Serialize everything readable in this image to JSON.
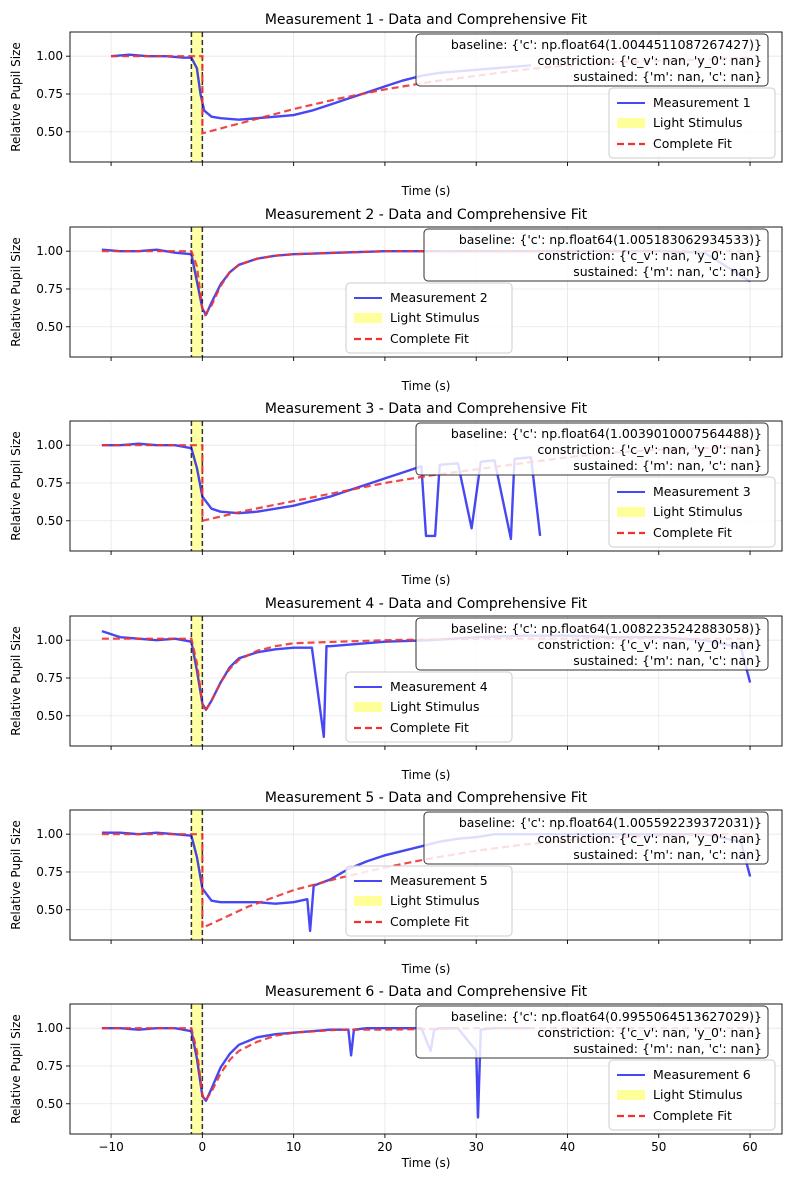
{
  "figure": {
    "shared_xlabel": "Time (s)"
  },
  "chart_data": [
    {
      "type": "line",
      "title": "Measurement 1 - Data and Comprehensive Fit",
      "xlabel": "Time (s)",
      "ylabel": "Relative Pupil Size",
      "xlim": [
        -14.5,
        63.5
      ],
      "ylim": [
        0.3,
        1.16
      ],
      "xticks": [
        -10,
        0,
        10,
        20,
        30,
        40,
        50,
        60
      ],
      "yticks": [
        0.5,
        0.75,
        1.0
      ],
      "ytick_labels": [
        "0.50",
        "0.75",
        "1.00"
      ],
      "show_xtick_labels": false,
      "grid": true,
      "legend_position": "lower-right",
      "stimulus": {
        "start": -1.2,
        "end": 0.0,
        "color": "#ffff99"
      },
      "fit_params": [
        "baseline: {'c': np.float64(1.0044511087267427)}",
        "constriction: {'c_v': nan, 'y_0': nan}",
        "sustained: {'m': nan, 'c': nan}"
      ],
      "series": [
        {
          "name": "Measurement 1",
          "kind": "data",
          "color": "#0000ee",
          "x": [
            -10,
            -8,
            -6,
            -4,
            -2,
            -1.2,
            -0.6,
            -0.2,
            0.2,
            1,
            2,
            4,
            6,
            8,
            10,
            12,
            14,
            16,
            18,
            20,
            22,
            24,
            26,
            28,
            30,
            32,
            34,
            36
          ],
          "y": [
            1.0,
            1.01,
            1.0,
            1.0,
            0.99,
            0.99,
            0.92,
            0.75,
            0.64,
            0.6,
            0.59,
            0.58,
            0.59,
            0.6,
            0.61,
            0.64,
            0.68,
            0.72,
            0.76,
            0.8,
            0.84,
            0.87,
            0.89,
            0.9,
            0.91,
            0.92,
            0.93,
            0.94
          ]
        },
        {
          "name": "Complete Fit",
          "kind": "fit",
          "color": "#ee3333",
          "x": [
            -10,
            -1.2,
            -1.2,
            0,
            0,
            5,
            10,
            15,
            20,
            25,
            30,
            35,
            40,
            45,
            50,
            55,
            60
          ],
          "y": [
            1.0,
            1.0,
            1.0,
            1.0,
            0.49,
            0.57,
            0.65,
            0.72,
            0.78,
            0.83,
            0.87,
            0.91,
            0.94,
            0.96,
            0.97,
            0.98,
            0.99
          ]
        }
      ],
      "legend": [
        "Measurement 1",
        "Light Stimulus",
        "Complete Fit"
      ]
    },
    {
      "type": "line",
      "title": "Measurement 2 - Data and Comprehensive Fit",
      "xlabel": "Time (s)",
      "ylabel": "Relative Pupil Size",
      "xlim": [
        -14.5,
        63.5
      ],
      "ylim": [
        0.3,
        1.16
      ],
      "xticks": [
        -10,
        0,
        10,
        20,
        30,
        40,
        50,
        60
      ],
      "yticks": [
        0.5,
        0.75,
        1.0
      ],
      "ytick_labels": [
        "0.50",
        "0.75",
        "1.00"
      ],
      "show_xtick_labels": false,
      "grid": true,
      "legend_position": "lower-center",
      "stimulus": {
        "start": -1.2,
        "end": 0.0,
        "color": "#ffff99"
      },
      "fit_params": [
        "baseline: {'c': np.float64(1.005183062934533)}",
        "constriction: {'c_v': nan, 'y_0': nan}",
        "sustained: {'m': nan, 'c': nan}"
      ],
      "series": [
        {
          "name": "Measurement 2",
          "kind": "data",
          "color": "#0000ee",
          "x": [
            -11,
            -9,
            -7,
            -5,
            -3,
            -1.2,
            -0.6,
            0,
            0.4,
            1,
            2,
            3,
            4,
            6,
            8,
            10,
            15,
            20,
            25,
            30,
            35,
            40,
            45,
            50,
            55,
            60
          ],
          "y": [
            1.01,
            1.0,
            1.0,
            1.01,
            0.99,
            0.98,
            0.8,
            0.62,
            0.58,
            0.66,
            0.78,
            0.86,
            0.91,
            0.95,
            0.97,
            0.98,
            0.99,
            1.0,
            1.0,
            1.0,
            1.0,
            1.0,
            1.0,
            1.0,
            0.99,
            0.8
          ]
        },
        {
          "name": "Complete Fit",
          "kind": "fit",
          "color": "#ee3333",
          "x": [
            -11,
            -1.2,
            -0.6,
            0,
            0.3,
            1,
            2,
            3,
            4,
            6,
            8,
            10,
            15,
            20,
            30,
            40,
            50,
            60
          ],
          "y": [
            1.0,
            1.0,
            0.9,
            0.62,
            0.58,
            0.64,
            0.77,
            0.86,
            0.91,
            0.95,
            0.97,
            0.98,
            0.99,
            1.0,
            1.0,
            1.0,
            1.0,
            1.0
          ]
        }
      ],
      "legend": [
        "Measurement 2",
        "Light Stimulus",
        "Complete Fit"
      ]
    },
    {
      "type": "line",
      "title": "Measurement 3 - Data and Comprehensive Fit",
      "xlabel": "Time (s)",
      "ylabel": "Relative Pupil Size",
      "xlim": [
        -14.5,
        63.5
      ],
      "ylim": [
        0.3,
        1.16
      ],
      "xticks": [
        -10,
        0,
        10,
        20,
        30,
        40,
        50,
        60
      ],
      "yticks": [
        0.5,
        0.75,
        1.0
      ],
      "ytick_labels": [
        "0.50",
        "0.75",
        "1.00"
      ],
      "show_xtick_labels": false,
      "grid": true,
      "legend_position": "lower-right",
      "stimulus": {
        "start": -1.2,
        "end": 0.0,
        "color": "#ffff99"
      },
      "fit_params": [
        "baseline: {'c': np.float64(1.0039010007564488)}",
        "constriction: {'c_v': nan, 'y_0': nan}",
        "sustained: {'m': nan, 'c': nan}"
      ],
      "series": [
        {
          "name": "Measurement 3",
          "kind": "data",
          "color": "#0000ee",
          "x": [
            -11,
            -9,
            -7,
            -5,
            -3,
            -1.2,
            -0.6,
            0,
            1,
            2,
            4,
            6,
            8,
            10,
            12,
            14,
            16,
            18,
            20,
            22,
            24,
            24.5,
            25.5,
            26,
            28,
            29.5,
            30.5,
            32,
            33.8,
            34.2,
            36,
            37
          ],
          "y": [
            1.0,
            1.0,
            1.01,
            1.0,
            1.0,
            0.98,
            0.85,
            0.66,
            0.58,
            0.56,
            0.55,
            0.56,
            0.58,
            0.6,
            0.63,
            0.66,
            0.7,
            0.74,
            0.78,
            0.82,
            0.86,
            0.4,
            0.4,
            0.87,
            0.88,
            0.45,
            0.89,
            0.9,
            0.38,
            0.91,
            0.92,
            0.4
          ]
        },
        {
          "name": "Complete Fit",
          "kind": "fit",
          "color": "#ee3333",
          "x": [
            -11,
            -1.2,
            -1.2,
            0,
            0,
            5,
            10,
            15,
            20,
            25,
            30,
            35,
            40,
            45,
            50,
            55,
            60
          ],
          "y": [
            1.0,
            1.0,
            1.0,
            1.0,
            0.5,
            0.57,
            0.63,
            0.69,
            0.75,
            0.8,
            0.84,
            0.88,
            0.92,
            0.95,
            0.97,
            0.98,
            0.99
          ]
        }
      ],
      "legend": [
        "Measurement 3",
        "Light Stimulus",
        "Complete Fit"
      ]
    },
    {
      "type": "line",
      "title": "Measurement 4 - Data and Comprehensive Fit",
      "xlabel": "Time (s)",
      "ylabel": "Relative Pupil Size",
      "xlim": [
        -14.5,
        63.5
      ],
      "ylim": [
        0.3,
        1.16
      ],
      "xticks": [
        -10,
        0,
        10,
        20,
        30,
        40,
        50,
        60
      ],
      "yticks": [
        0.5,
        0.75,
        1.0
      ],
      "ytick_labels": [
        "0.50",
        "0.75",
        "1.00"
      ],
      "show_xtick_labels": false,
      "grid": true,
      "legend_position": "lower-center",
      "stimulus": {
        "start": -1.2,
        "end": 0.0,
        "color": "#ffff99"
      },
      "fit_params": [
        "baseline: {'c': np.float64(1.0082235242883058)}",
        "constriction: {'c_v': nan, 'y_0': nan}",
        "sustained: {'m': nan, 'c': nan}"
      ],
      "series": [
        {
          "name": "Measurement 4",
          "kind": "data",
          "color": "#0000ee",
          "x": [
            -11,
            -9,
            -7,
            -5,
            -3,
            -1.2,
            -0.6,
            0,
            0.4,
            1,
            2,
            3,
            4,
            6,
            8,
            10,
            12,
            13.3,
            13.6,
            14,
            16,
            18,
            20,
            25,
            30,
            35,
            40,
            45,
            50,
            55,
            59,
            60
          ],
          "y": [
            1.06,
            1.02,
            1.01,
            1.0,
            1.01,
            0.99,
            0.8,
            0.58,
            0.54,
            0.6,
            0.72,
            0.82,
            0.88,
            0.92,
            0.94,
            0.95,
            0.95,
            0.36,
            0.96,
            0.96,
            0.97,
            0.98,
            0.99,
            1.0,
            1.02,
            1.03,
            1.03,
            1.02,
            1.02,
            1.0,
            0.95,
            0.72
          ]
        },
        {
          "name": "Complete Fit",
          "kind": "fit",
          "color": "#ee3333",
          "x": [
            -11,
            -1.2,
            -0.6,
            0,
            0.3,
            1,
            2,
            3,
            4,
            6,
            8,
            10,
            15,
            20,
            30,
            40,
            50,
            60
          ],
          "y": [
            1.01,
            1.01,
            0.85,
            0.58,
            0.53,
            0.6,
            0.72,
            0.81,
            0.87,
            0.93,
            0.96,
            0.98,
            0.99,
            1.0,
            1.01,
            1.01,
            1.01,
            1.01
          ]
        }
      ],
      "legend": [
        "Measurement 4",
        "Light Stimulus",
        "Complete Fit"
      ]
    },
    {
      "type": "line",
      "title": "Measurement 5 - Data and Comprehensive Fit",
      "xlabel": "Time (s)",
      "ylabel": "Relative Pupil Size",
      "xlim": [
        -14.5,
        63.5
      ],
      "ylim": [
        0.3,
        1.16
      ],
      "xticks": [
        -10,
        0,
        10,
        20,
        30,
        40,
        50,
        60
      ],
      "yticks": [
        0.5,
        0.75,
        1.0
      ],
      "ytick_labels": [
        "0.50",
        "0.75",
        "1.00"
      ],
      "show_xtick_labels": false,
      "grid": true,
      "legend_position": "lower-center",
      "stimulus": {
        "start": -1.2,
        "end": 0.0,
        "color": "#ffff99"
      },
      "fit_params": [
        "baseline: {'c': np.float64(1.005592239372031)}",
        "constriction: {'c_v': nan, 'y_0': nan}",
        "sustained: {'m': nan, 'c': nan}"
      ],
      "series": [
        {
          "name": "Measurement 5",
          "kind": "data",
          "color": "#0000ee",
          "x": [
            -11,
            -9,
            -7,
            -5,
            -3,
            -1.2,
            -0.6,
            0,
            1,
            2,
            4,
            6,
            8,
            10,
            11.5,
            11.8,
            12.2,
            14,
            16,
            18,
            20,
            22,
            24,
            26,
            28,
            30,
            32,
            34,
            36,
            40,
            45,
            50,
            55,
            59,
            60
          ],
          "y": [
            1.01,
            1.01,
            1.0,
            1.01,
            1.0,
            0.99,
            0.85,
            0.64,
            0.56,
            0.55,
            0.55,
            0.55,
            0.54,
            0.55,
            0.57,
            0.36,
            0.66,
            0.7,
            0.77,
            0.82,
            0.86,
            0.89,
            0.92,
            0.95,
            0.97,
            0.98,
            1.0,
            1.0,
            1.0,
            1.0,
            1.0,
            1.0,
            1.0,
            0.95,
            0.72
          ]
        },
        {
          "name": "Complete Fit",
          "kind": "fit",
          "color": "#ee3333",
          "x": [
            -11,
            -1.2,
            -1.2,
            0,
            0,
            5,
            10,
            15,
            20,
            25,
            30,
            35,
            40,
            45,
            50,
            55,
            60
          ],
          "y": [
            1.0,
            1.0,
            1.0,
            1.0,
            0.38,
            0.52,
            0.63,
            0.71,
            0.78,
            0.84,
            0.89,
            0.93,
            0.96,
            0.98,
            0.99,
            1.0,
            1.0
          ]
        }
      ],
      "legend": [
        "Measurement 5",
        "Light Stimulus",
        "Complete Fit"
      ]
    },
    {
      "type": "line",
      "title": "Measurement 6 - Data and Comprehensive Fit",
      "xlabel": "Time (s)",
      "ylabel": "Relative Pupil Size",
      "xlim": [
        -14.5,
        63.5
      ],
      "ylim": [
        0.3,
        1.16
      ],
      "xticks": [
        -10,
        0,
        10,
        20,
        30,
        40,
        50,
        60
      ],
      "xtick_labels": [
        "−10",
        "0",
        "10",
        "20",
        "30",
        "40",
        "50",
        "60"
      ],
      "yticks": [
        0.5,
        0.75,
        1.0
      ],
      "ytick_labels": [
        "0.50",
        "0.75",
        "1.00"
      ],
      "show_xtick_labels": true,
      "grid": true,
      "legend_position": "lower-right",
      "stimulus": {
        "start": -1.2,
        "end": 0.0,
        "color": "#ffff99"
      },
      "fit_params": [
        "baseline: {'c': np.float64(0.9955064513627029)}",
        "constriction: {'c_v': nan, 'y_0': nan}",
        "sustained: {'m': nan, 'c': nan}"
      ],
      "series": [
        {
          "name": "Measurement 6",
          "kind": "data",
          "color": "#0000ee",
          "x": [
            -11,
            -9,
            -7,
            -5,
            -3,
            -1.2,
            -0.6,
            0,
            0.4,
            1,
            2,
            3,
            4,
            6,
            8,
            10,
            12,
            14,
            16,
            16.3,
            16.6,
            18,
            20,
            22,
            24,
            25,
            25.4,
            26,
            28,
            30,
            30.2,
            30.5,
            32,
            36
          ],
          "y": [
            1.0,
            1.0,
            0.99,
            1.0,
            1.0,
            0.98,
            0.8,
            0.55,
            0.52,
            0.6,
            0.74,
            0.83,
            0.89,
            0.94,
            0.96,
            0.97,
            0.98,
            0.99,
            0.99,
            0.82,
            0.99,
            1.0,
            1.0,
            1.0,
            1.0,
            0.85,
            0.99,
            1.0,
            1.0,
            0.85,
            0.41,
            0.99,
            1.0,
            1.0
          ]
        },
        {
          "name": "Complete Fit",
          "kind": "fit",
          "color": "#ee3333",
          "x": [
            -11,
            -1.2,
            -0.6,
            0,
            0.3,
            1,
            2,
            3,
            4,
            6,
            8,
            10,
            15,
            20,
            30,
            40,
            50,
            60
          ],
          "y": [
            1.0,
            1.0,
            0.85,
            0.56,
            0.52,
            0.58,
            0.7,
            0.79,
            0.85,
            0.91,
            0.95,
            0.97,
            0.99,
            0.99,
            1.0,
            1.0,
            1.0,
            1.0
          ]
        }
      ],
      "legend": [
        "Measurement 6",
        "Light Stimulus",
        "Complete Fit"
      ]
    }
  ]
}
